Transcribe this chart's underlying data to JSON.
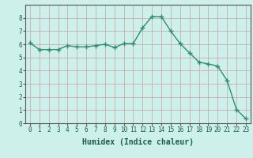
{
  "x": [
    0,
    1,
    2,
    3,
    4,
    5,
    6,
    7,
    8,
    9,
    10,
    11,
    12,
    13,
    14,
    15,
    16,
    17,
    18,
    19,
    20,
    21,
    22,
    23
  ],
  "y": [
    6.1,
    5.6,
    5.6,
    5.6,
    5.9,
    5.8,
    5.8,
    5.9,
    6.0,
    5.75,
    6.05,
    6.05,
    7.25,
    8.1,
    8.1,
    7.0,
    6.05,
    5.35,
    4.65,
    4.5,
    4.35,
    3.25,
    1.05,
    0.35
  ],
  "line_color": "#2e8b74",
  "marker": "+",
  "marker_size": 4,
  "bg_color": "#cdf0ea",
  "grid_color": "#b0b0b0",
  "xlabel": "Humidex (Indice chaleur)",
  "xlabel_fontsize": 7,
  "xlim": [
    -0.5,
    23.5
  ],
  "ylim": [
    0,
    9
  ],
  "yticks": [
    0,
    1,
    2,
    3,
    4,
    5,
    6,
    7,
    8
  ],
  "xticks": [
    0,
    1,
    2,
    3,
    4,
    5,
    6,
    7,
    8,
    9,
    10,
    11,
    12,
    13,
    14,
    15,
    16,
    17,
    18,
    19,
    20,
    21,
    22,
    23
  ],
  "tick_fontsize": 5.5,
  "line_width": 1.0
}
